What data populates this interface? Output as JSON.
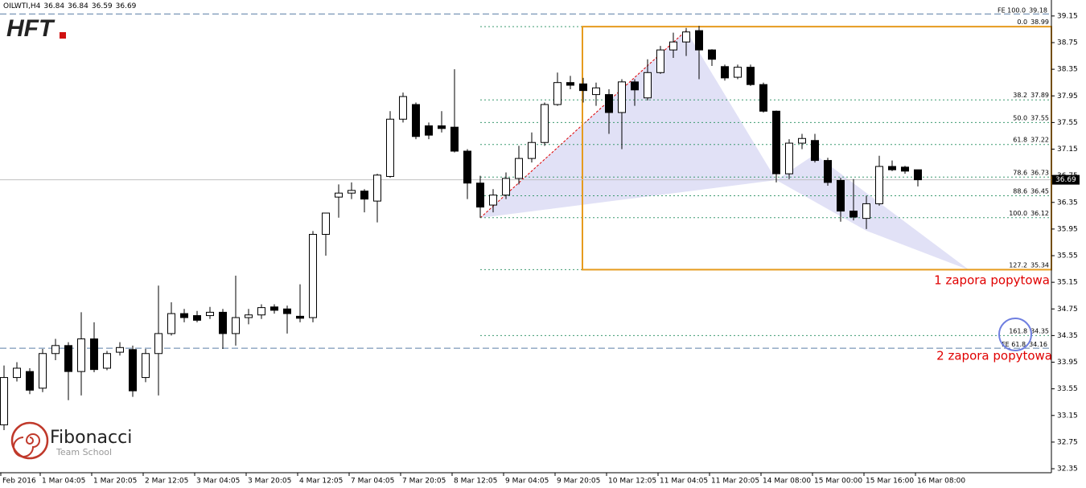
{
  "chart_data": {
    "type": "candlestick",
    "title": "OILWTI,H4",
    "categories": [
      "Feb 2016",
      null,
      null,
      "1 Mar 04:05",
      null,
      null,
      null,
      "1 Mar 20:05",
      null,
      null,
      null,
      "2 Mar 12:05",
      null,
      null,
      null,
      "3 Mar 04:05",
      null,
      null,
      null,
      "3 Mar 20:05",
      null,
      null,
      null,
      "4 Mar 12:05",
      null,
      null,
      null,
      "7 Mar 04:05",
      null,
      null,
      null,
      "7 Mar 20:05",
      null,
      null,
      null,
      "8 Mar 12:05",
      null,
      null,
      null,
      "9 Mar 04:05",
      null,
      null,
      null,
      "9 Mar 20:05",
      null,
      null,
      null,
      "10 Mar 12:05",
      null,
      null,
      null,
      "11 Mar 04:05",
      null,
      null,
      null,
      "11 Mar 20:05",
      null,
      null,
      null,
      "14 Mar 08:00",
      null,
      null,
      null,
      "15 Mar 00:00",
      null,
      null,
      null,
      "15 Mar 16:00",
      null,
      null,
      null,
      "16 Mar 08:00"
    ],
    "open": [
      33.01,
      33.72,
      33.81,
      33.56,
      34.08,
      34.2,
      33.81,
      34.3,
      33.86,
      34.1,
      34.14,
      33.72,
      34.08,
      34.38,
      34.68,
      34.65,
      34.65,
      34.7,
      34.38,
      34.62,
      34.66,
      34.78,
      34.75,
      34.64,
      34.62,
      35.87,
      36.43,
      36.49,
      36.52,
      36.37,
      36.74,
      37.6,
      37.82,
      37.5,
      37.5,
      37.48,
      37.12,
      36.64,
      36.31,
      36.46,
      36.71,
      37.01,
      37.25,
      37.82,
      38.15,
      38.13,
      37.97,
      37.97,
      37.7,
      38.16,
      37.92,
      38.3,
      38.64,
      38.76,
      38.93,
      38.64,
      38.39,
      38.23,
      38.38,
      38.12,
      37.72,
      36.78,
      37.24,
      37.28,
      36.98,
      36.68,
      36.22,
      36.11,
      36.33,
      36.89,
      36.88,
      36.84
    ],
    "high": [
      33.9,
      33.95,
      33.86,
      34.15,
      34.3,
      34.25,
      34.7,
      34.55,
      34.12,
      34.25,
      34.2,
      34.15,
      35.1,
      34.85,
      34.75,
      34.72,
      34.78,
      34.75,
      35.25,
      34.75,
      34.82,
      34.82,
      34.8,
      35.12,
      35.92,
      36.19,
      36.62,
      36.65,
      36.55,
      36.78,
      37.72,
      38.0,
      37.85,
      37.55,
      37.72,
      38.35,
      37.15,
      36.75,
      36.55,
      36.8,
      37.2,
      37.4,
      37.85,
      38.3,
      38.25,
      38.22,
      38.15,
      38.05,
      38.2,
      38.2,
      38.5,
      38.7,
      38.9,
      38.97,
      39.0,
      38.65,
      38.42,
      38.42,
      38.42,
      38.15,
      37.73,
      37.3,
      37.38,
      37.38,
      37.02,
      36.72,
      36.7,
      36.45,
      37.05,
      36.98,
      36.9,
      36.84
    ],
    "low": [
      32.93,
      33.66,
      33.47,
      33.5,
      33.98,
      33.38,
      33.45,
      33.8,
      33.83,
      34.05,
      33.43,
      33.65,
      33.45,
      34.35,
      34.55,
      34.55,
      34.6,
      34.15,
      34.2,
      34.52,
      34.6,
      34.68,
      34.38,
      34.55,
      34.55,
      35.55,
      36.12,
      36.4,
      36.2,
      36.05,
      36.72,
      37.55,
      37.3,
      37.3,
      37.4,
      37.1,
      36.4,
      36.12,
      36.2,
      36.4,
      36.62,
      36.95,
      37.2,
      37.8,
      38.05,
      37.85,
      37.8,
      37.38,
      37.15,
      37.8,
      37.88,
      38.28,
      38.52,
      38.55,
      38.2,
      38.4,
      38.18,
      38.2,
      38.1,
      37.7,
      36.65,
      36.7,
      37.15,
      36.95,
      36.6,
      36.06,
      36.08,
      35.95,
      36.3,
      36.82,
      36.78,
      36.59
    ],
    "close": [
      33.72,
      33.86,
      33.53,
      34.08,
      34.2,
      33.81,
      34.3,
      33.84,
      34.08,
      34.17,
      33.52,
      34.08,
      34.38,
      34.68,
      34.62,
      34.58,
      34.7,
      34.38,
      34.62,
      34.66,
      34.77,
      34.73,
      34.68,
      34.61,
      35.87,
      36.19,
      36.49,
      36.53,
      36.4,
      36.76,
      37.6,
      37.94,
      37.34,
      37.36,
      37.46,
      37.12,
      36.64,
      36.28,
      36.46,
      36.71,
      37.01,
      37.25,
      37.82,
      38.15,
      38.11,
      38.03,
      38.07,
      37.7,
      38.16,
      38.04,
      38.3,
      38.64,
      38.76,
      38.91,
      38.64,
      38.5,
      38.22,
      38.38,
      38.12,
      37.72,
      36.78,
      37.24,
      37.31,
      36.98,
      36.65,
      36.22,
      36.13,
      36.33,
      36.89,
      36.84,
      36.82,
      36.69
    ],
    "up_color": "#ffffff",
    "down_color": "#000000",
    "ylim": [
      32.29,
      39.39
    ],
    "yticks": [
      39.15,
      38.75,
      38.35,
      37.95,
      37.55,
      37.15,
      36.75,
      36.35,
      35.95,
      35.55,
      35.15,
      34.75,
      34.35,
      33.95,
      33.55,
      33.15,
      32.75,
      32.35
    ],
    "fib_levels": [
      {
        "ratio": "0.0",
        "value": 38.99
      },
      {
        "ratio": "38.2",
        "value": 37.89
      },
      {
        "ratio": "50.0",
        "value": 37.55
      },
      {
        "ratio": "61.8",
        "value": 37.22
      },
      {
        "ratio": "78.6",
        "value": 36.73
      },
      {
        "ratio": "88.6",
        "value": 36.45
      },
      {
        "ratio": "100.0",
        "value": 36.12
      },
      {
        "ratio": "127.2",
        "value": 35.34
      },
      {
        "ratio": "161.8",
        "value": 34.35
      }
    ],
    "fib_color": "#3c9a70",
    "fe_levels": [
      {
        "ratio": "FE 100.0",
        "value": 39.18
      },
      {
        "ratio": "FE 61.8",
        "value": 34.16
      }
    ],
    "fe_color": "#5b7fa6",
    "annotations": [
      "1 zapora popytowa",
      "2 zapora popytowa"
    ],
    "logos": {
      "top": "HFT",
      "bottom": "Fibonacci",
      "bottom_sub": "Team School"
    }
  }
}
